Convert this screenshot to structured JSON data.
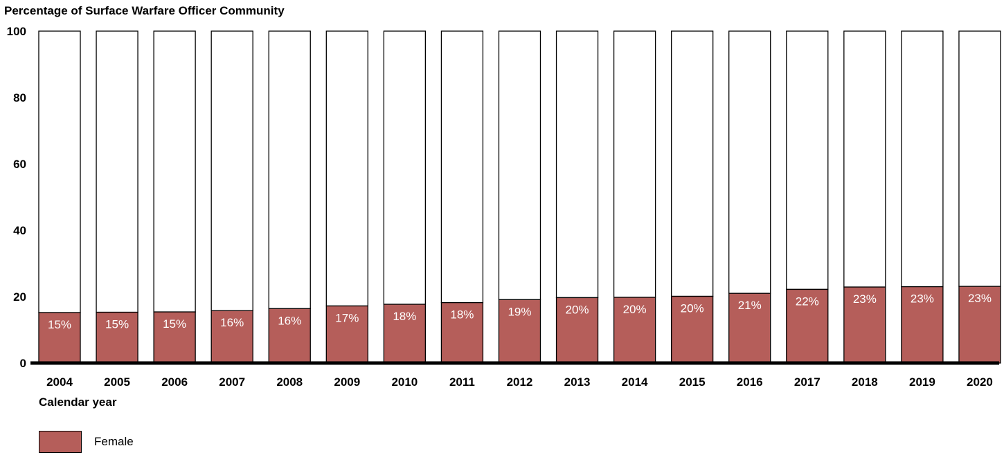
{
  "chart_data": {
    "type": "bar",
    "stacked": true,
    "ylabel": "Percentage of Surface Warfare Officer Community",
    "xlabel": "Calendar year",
    "ylim": [
      0,
      100
    ],
    "yticks": [
      0,
      20,
      40,
      60,
      80,
      100
    ],
    "categories": [
      "2004",
      "2005",
      "2006",
      "2007",
      "2008",
      "2009",
      "2010",
      "2011",
      "2012",
      "2013",
      "2014",
      "2015",
      "2016",
      "2017",
      "2018",
      "2019",
      "2020"
    ],
    "series": [
      {
        "name": "Female",
        "color": "#b55e5a",
        "values": [
          15.2,
          15.3,
          15.4,
          15.8,
          16.4,
          17.2,
          17.7,
          18.2,
          19.1,
          19.7,
          19.8,
          20.1,
          21.0,
          22.2,
          22.9,
          23.0,
          23.1
        ],
        "labels": [
          "15%",
          "15%",
          "15%",
          "16%",
          "16%",
          "17%",
          "18%",
          "18%",
          "19%",
          "20%",
          "20%",
          "20%",
          "21%",
          "22%",
          "23%",
          "23%",
          "23%"
        ]
      }
    ],
    "legend": "bottom-left",
    "grid": false
  }
}
